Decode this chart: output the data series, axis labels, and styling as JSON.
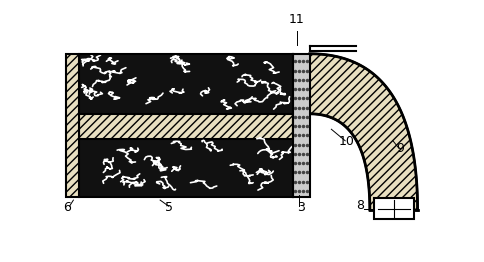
{
  "fig_width": 4.85,
  "fig_height": 2.62,
  "dpi": 100,
  "bg_color": "#ffffff",
  "label_fontsize": 9,
  "lw": 1.5,
  "coal_color": "#111111",
  "hatch_face_color": "#e8dfc0",
  "plug_color": "#aaaaaa",
  "white": "#ffffff"
}
